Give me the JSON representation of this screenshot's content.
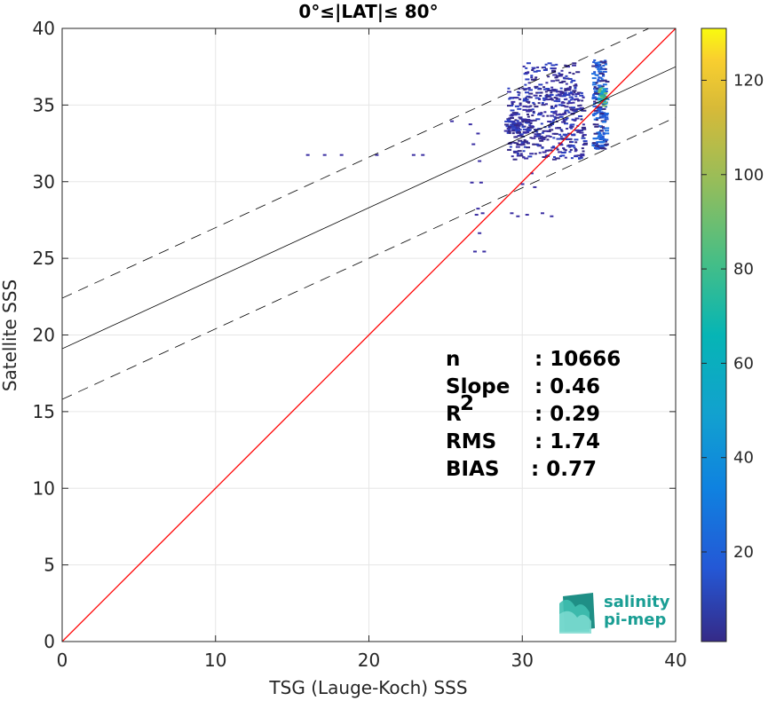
{
  "chart_data": {
    "type": "scatter",
    "title": "0°≤|LAT|≤ 80°",
    "xlabel": "TSG (Lauge-Koch) SSS",
    "ylabel": "Satellite SSS",
    "xlim": [
      0,
      40
    ],
    "ylim": [
      0,
      40
    ],
    "xticks": [
      "0",
      "10",
      "20",
      "30",
      "40"
    ],
    "yticks": [
      "0",
      "5",
      "10",
      "15",
      "20",
      "25",
      "30",
      "35",
      "40"
    ],
    "grid": true,
    "colorbar": {
      "range": [
        1,
        131
      ],
      "ticks": [
        "20",
        "40",
        "60",
        "80",
        "100",
        "120"
      ],
      "colormap": "parula"
    },
    "identity_line": {
      "x": [
        0,
        40
      ],
      "y": [
        0,
        40
      ],
      "color": "#ff0000"
    },
    "fit_line": {
      "slope": 0.46,
      "intercept": 19.1,
      "color": "#000000"
    },
    "fit_bounds_offset": 3.3,
    "clusters": [
      {
        "x": [
          29.0,
          34.0
        ],
        "y": [
          31.5,
          36.3
        ],
        "n": 420,
        "density": "low"
      },
      {
        "x": [
          28.8,
          30.5
        ],
        "y": [
          33.2,
          34.2
        ],
        "n": 80,
        "density": "low"
      },
      {
        "x": [
          30.0,
          33.5
        ],
        "y": [
          35.2,
          37.8
        ],
        "n": 110,
        "density": "low"
      },
      {
        "x": [
          34.5,
          35.4
        ],
        "y": [
          32.2,
          38.0
        ],
        "n": 200,
        "density": "medium"
      },
      {
        "x": [
          34.9,
          35.3
        ],
        "y": [
          35.0,
          36.2
        ],
        "n": 40,
        "density": "high"
      }
    ],
    "isolated_points": [
      [
        15.9,
        31.8
      ],
      [
        17.0,
        31.8
      ],
      [
        18.1,
        31.8
      ],
      [
        20.4,
        31.8
      ],
      [
        22.8,
        31.8
      ],
      [
        23.4,
        31.8
      ],
      [
        25.3,
        34.0
      ],
      [
        26.5,
        33.8
      ],
      [
        27.0,
        33.2
      ],
      [
        26.7,
        32.5
      ],
      [
        27.1,
        31.4
      ],
      [
        26.6,
        30.0
      ],
      [
        27.2,
        30.0
      ],
      [
        27.0,
        28.3
      ],
      [
        27.3,
        28.0
      ],
      [
        26.9,
        27.9
      ],
      [
        27.1,
        26.7
      ],
      [
        26.8,
        25.5
      ],
      [
        27.4,
        25.5
      ],
      [
        29.2,
        28.0
      ],
      [
        29.6,
        27.8
      ],
      [
        30.2,
        27.9
      ],
      [
        31.2,
        28.0
      ],
      [
        31.8,
        27.8
      ],
      [
        30.7,
        29.7
      ],
      [
        30.5,
        30.6
      ],
      [
        29.9,
        29.9
      ]
    ],
    "stats": [
      {
        "label": "n",
        "sup": "",
        "value": ": 10666"
      },
      {
        "label": "Slope",
        "sup": "",
        "value": ": 0.46"
      },
      {
        "label": "R",
        "sup": "2",
        "value": ": 0.29"
      },
      {
        "label": "RMS",
        "sup": "",
        "value": ": 1.74"
      },
      {
        "label": "BIAS",
        "sup": "",
        "value": ": 0.77"
      }
    ]
  },
  "logo": {
    "line1": "salinity",
    "line2": "pi-mep"
  }
}
